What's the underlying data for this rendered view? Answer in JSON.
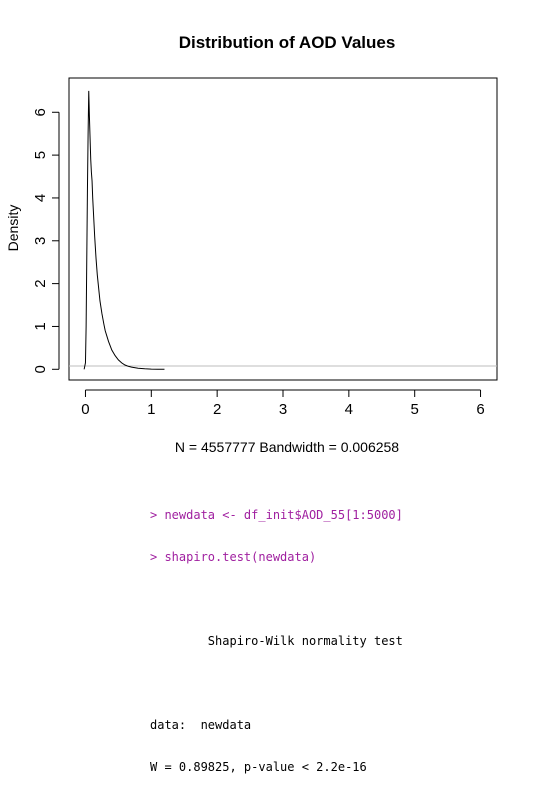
{
  "chart_data": {
    "type": "line",
    "title": "Distribution of AOD Values",
    "xlabel": "N = 4557777   Bandwidth = 0.006258",
    "ylabel": "Density",
    "xlim": [
      -0.25,
      6.25
    ],
    "ylim": [
      -0.25,
      6.8
    ],
    "x_ticks": [
      "0",
      "1",
      "2",
      "3",
      "4",
      "5",
      "6"
    ],
    "y_ticks": [
      "0",
      "1",
      "2",
      "3",
      "4",
      "5",
      "6"
    ],
    "grid": false,
    "series": [
      {
        "values": [
          [
            -0.02,
            0
          ],
          [
            0.0,
            0.15
          ],
          [
            0.01,
            1.0
          ],
          [
            0.02,
            2.6
          ],
          [
            0.03,
            4.2
          ],
          [
            0.04,
            5.5
          ],
          [
            0.05,
            6.5
          ],
          [
            0.06,
            5.9
          ],
          [
            0.07,
            5.4
          ],
          [
            0.08,
            4.9
          ],
          [
            0.09,
            4.6
          ],
          [
            0.1,
            4.4
          ],
          [
            0.11,
            4.0
          ],
          [
            0.12,
            3.7
          ],
          [
            0.13,
            3.4
          ],
          [
            0.14,
            3.1
          ],
          [
            0.15,
            2.85
          ],
          [
            0.16,
            2.6
          ],
          [
            0.18,
            2.2
          ],
          [
            0.2,
            1.9
          ],
          [
            0.22,
            1.6
          ],
          [
            0.25,
            1.3
          ],
          [
            0.28,
            1.05
          ],
          [
            0.3,
            0.9
          ],
          [
            0.35,
            0.65
          ],
          [
            0.4,
            0.45
          ],
          [
            0.45,
            0.32
          ],
          [
            0.5,
            0.22
          ],
          [
            0.55,
            0.15
          ],
          [
            0.6,
            0.1
          ],
          [
            0.65,
            0.07
          ],
          [
            0.7,
            0.05
          ],
          [
            0.8,
            0.025
          ],
          [
            0.9,
            0.012
          ],
          [
            1.0,
            0.005
          ],
          [
            1.1,
            0.002
          ],
          [
            1.2,
            0.0
          ]
        ]
      }
    ]
  },
  "console": {
    "cmd1": "> newdata <- df_init$AOD_55[1:5000]",
    "cmd2": "> shapiro.test(newdata)",
    "test_title": "        Shapiro-Wilk normality test",
    "data_line": "data:  newdata",
    "result_line": "W = 0.89825, p-value < 2.2e-16"
  }
}
